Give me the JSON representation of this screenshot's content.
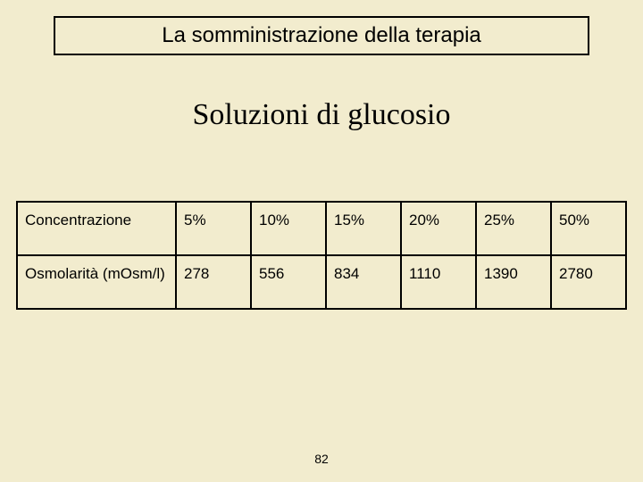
{
  "header": {
    "title": "La somministrazione della terapia"
  },
  "subtitle": "Soluzioni di glucosio",
  "table": {
    "row1_label": "Concentrazione",
    "row1_values": [
      "5%",
      "10%",
      "15%",
      "20%",
      "25%",
      "50%"
    ],
    "row2_label": "Osmolarità (mOsm/l)",
    "row2_values": [
      "278",
      "556",
      "834",
      "1110",
      "1390",
      "2780"
    ],
    "border_color": "#000000",
    "font_size": 17,
    "font_family": "Verdana",
    "label_col_width": 178,
    "data_col_width": 84
  },
  "page_number": "82",
  "colors": {
    "background": "#f2ecce",
    "text": "#000000",
    "border": "#000000"
  },
  "typography": {
    "header_font": "Verdana",
    "header_size": 24,
    "subtitle_font": "Georgia",
    "subtitle_size": 34,
    "table_font": "Verdana",
    "table_size": 17,
    "page_num_size": 14
  }
}
